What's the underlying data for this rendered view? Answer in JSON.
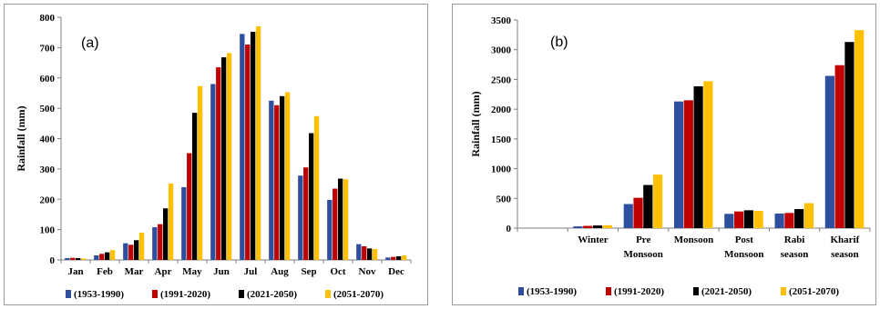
{
  "colors": {
    "s1": "#2e4f9e",
    "s2": "#c00000",
    "s3": "#000000",
    "s4": "#ffc000",
    "axis": "#7f7f7f"
  },
  "chart_data": [
    {
      "type": "bar",
      "panel_tag": "(a)",
      "title": "",
      "xlabel": "",
      "ylabel": "Rainfall  (mm)",
      "ylim": [
        0,
        800
      ],
      "yticks": [
        0,
        100,
        200,
        300,
        400,
        500,
        600,
        700,
        800
      ],
      "grid": false,
      "legend": "bottom",
      "categories": [
        [
          "Jan"
        ],
        [
          "Feb"
        ],
        [
          "Mar"
        ],
        [
          "Apr"
        ],
        [
          "May"
        ],
        [
          "Jun"
        ],
        [
          "Jul"
        ],
        [
          "Aug"
        ],
        [
          "Sep"
        ],
        [
          "Oct"
        ],
        [
          "Nov"
        ],
        [
          "Dec"
        ]
      ],
      "series": [
        {
          "name": "(1953-1990)",
          "values": [
            6,
            15,
            55,
            108,
            240,
            580,
            745,
            525,
            278,
            198,
            52,
            8
          ]
        },
        {
          "name": "(1991-2020)",
          "values": [
            7,
            20,
            50,
            118,
            352,
            635,
            710,
            510,
            305,
            235,
            45,
            10
          ]
        },
        {
          "name": "(2021-2050)",
          "values": [
            6,
            25,
            65,
            170,
            485,
            668,
            752,
            540,
            418,
            268,
            38,
            12
          ]
        },
        {
          "name": "(2051-2070)",
          "values": [
            5,
            32,
            90,
            252,
            573,
            682,
            770,
            553,
            474,
            266,
            36,
            15
          ]
        }
      ]
    },
    {
      "type": "bar",
      "panel_tag": "(b)",
      "title": "",
      "xlabel": "",
      "ylabel": "Rainfall  (mm)",
      "ylim": [
        0,
        3500
      ],
      "yticks": [
        0,
        500,
        1000,
        1500,
        2000,
        2500,
        3000,
        3500
      ],
      "grid": false,
      "legend": "bottom",
      "categories": [
        [
          ""
        ],
        [
          "Winter"
        ],
        [
          "Pre",
          "Monsoon"
        ],
        [
          "Monsoon"
        ],
        [
          "Post",
          "Monsoon"
        ],
        [
          "Rabi",
          "season"
        ],
        [
          "Kharif",
          "season"
        ]
      ],
      "series": [
        {
          "name": "(1953-1990)",
          "values": [
            0,
            30,
            405,
            2130,
            240,
            245,
            2560
          ]
        },
        {
          "name": "(1991-2020)",
          "values": [
            0,
            38,
            510,
            2150,
            280,
            255,
            2740
          ]
        },
        {
          "name": "(2021-2050)",
          "values": [
            0,
            45,
            725,
            2385,
            300,
            320,
            3130
          ]
        },
        {
          "name": "(2051-2070)",
          "values": [
            0,
            48,
            900,
            2470,
            290,
            420,
            3330
          ]
        }
      ]
    }
  ]
}
